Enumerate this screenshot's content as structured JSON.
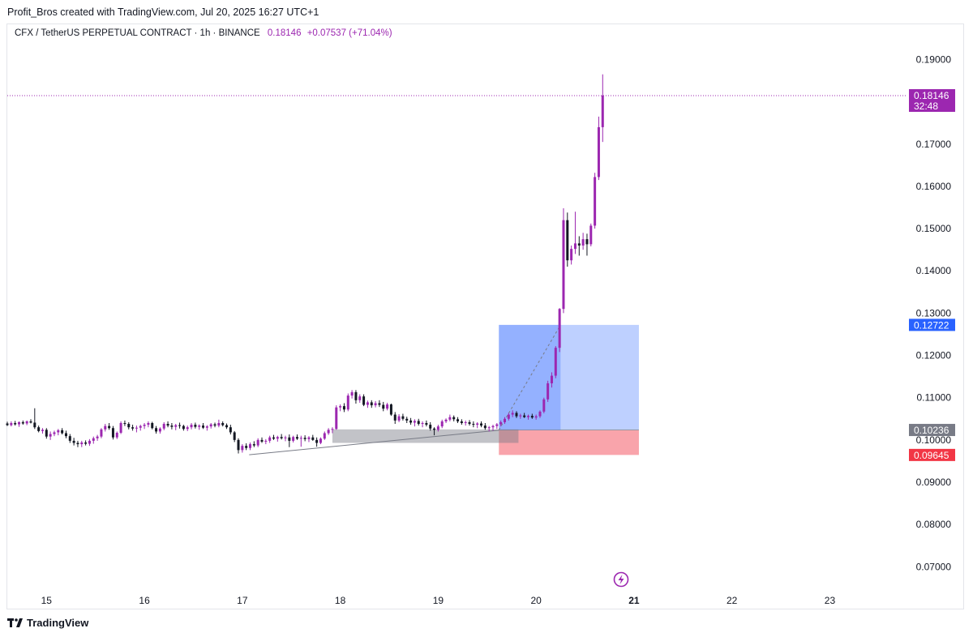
{
  "header": {
    "attribution": "Profit_Bros created with TradingView.com, Jul 20, 2025 16:27 UTC+1"
  },
  "legend": {
    "symbol": "CFX / TetherUS PERPETUAL CONTRACT · 1h · BINANCE",
    "last": "0.18146",
    "change": "+0.07537 (+71.04%)"
  },
  "footer": {
    "brand": "TradingView"
  },
  "colors": {
    "bull": "#9c27b0",
    "bear": "#131722",
    "target": "#2962ff",
    "stop": "#f23645",
    "entry": "#787b86"
  },
  "chart_data": {
    "type": "candlestick",
    "title": "CFX / TetherUS PERPETUAL CONTRACT · 1h · BINANCE",
    "interval": "1h",
    "x_axis": {
      "ticks": [
        "15",
        "16",
        "17",
        "18",
        "19",
        "20",
        "21",
        "22",
        "23"
      ],
      "highlighted": "21",
      "min": 14.6,
      "max": 23.7
    },
    "y_axis": {
      "ticks": [
        "0.19000",
        "0.17000",
        "0.16000",
        "0.15000",
        "0.14000",
        "0.13000",
        "0.12000",
        "0.11000",
        "0.10000",
        "0.09000",
        "0.08000",
        "0.07000"
      ],
      "min": 0.0645,
      "max": 0.1945,
      "side": "right"
    },
    "grid": false,
    "price_labels": [
      {
        "role": "last",
        "value": "0.18146",
        "countdown": "32:48",
        "color": "#9c27b0"
      },
      {
        "role": "target",
        "value": "0.12722",
        "color": "#2962ff"
      },
      {
        "role": "entry",
        "value": "0.10236",
        "color": "#787b86"
      },
      {
        "role": "stop",
        "value": "0.09645",
        "color": "#f23645"
      }
    ],
    "long_position": {
      "x_start": 19.62,
      "x_end": 21.05,
      "entry": 0.10236,
      "target": 0.12722,
      "stop": 0.09645
    },
    "trendline": {
      "from": [
        17.07,
        0.0965
      ],
      "to": [
        19.62,
        0.1023
      ]
    },
    "consolidation_box": {
      "x_start": 17.92,
      "x_end": 19.82,
      "top": 0.1025,
      "bottom": 0.0993
    },
    "candles": [
      [
        14.6,
        0.1039,
        0.1043,
        0.1033,
        0.1035
      ],
      [
        14.64,
        0.1035,
        0.1044,
        0.1032,
        0.104
      ],
      [
        14.68,
        0.104,
        0.1045,
        0.1034,
        0.1037
      ],
      [
        14.72,
        0.1037,
        0.1044,
        0.1031,
        0.1042
      ],
      [
        14.76,
        0.1042,
        0.1046,
        0.1036,
        0.1039
      ],
      [
        14.8,
        0.1039,
        0.1046,
        0.1035,
        0.1044
      ],
      [
        14.84,
        0.1044,
        0.1049,
        0.1039,
        0.1041
      ],
      [
        14.88,
        0.1041,
        0.1075,
        0.1026,
        0.103
      ],
      [
        14.92,
        0.103,
        0.1034,
        0.1018,
        0.1021
      ],
      [
        14.96,
        0.1021,
        0.1028,
        0.1015,
        0.1024
      ],
      [
        15.0,
        0.1024,
        0.1028,
        0.1003,
        0.1008
      ],
      [
        15.04,
        0.1008,
        0.102,
        0.1,
        0.1014
      ],
      [
        15.08,
        0.1014,
        0.1022,
        0.1009,
        0.1018
      ],
      [
        15.12,
        0.1018,
        0.1026,
        0.1011,
        0.1023
      ],
      [
        15.16,
        0.1023,
        0.1028,
        0.1013,
        0.1016
      ],
      [
        15.2,
        0.1016,
        0.1022,
        0.1004,
        0.1009
      ],
      [
        15.24,
        0.1009,
        0.1014,
        0.0993,
        0.0998
      ],
      [
        15.28,
        0.0998,
        0.1005,
        0.0987,
        0.0993
      ],
      [
        15.32,
        0.0993,
        0.0998,
        0.0983,
        0.099
      ],
      [
        15.36,
        0.099,
        0.0998,
        0.0983,
        0.0994
      ],
      [
        15.4,
        0.0994,
        0.0999,
        0.0987,
        0.0991
      ],
      [
        15.44,
        0.0991,
        0.1002,
        0.0986,
        0.0998
      ],
      [
        15.48,
        0.0998,
        0.1008,
        0.0991,
        0.1004
      ],
      [
        15.52,
        0.1004,
        0.1012,
        0.0998,
        0.1008
      ],
      [
        15.56,
        0.1008,
        0.1028,
        0.1004,
        0.1025
      ],
      [
        15.6,
        0.1025,
        0.1038,
        0.102,
        0.1033
      ],
      [
        15.64,
        0.1033,
        0.104,
        0.1024,
        0.1028
      ],
      [
        15.68,
        0.1028,
        0.1033,
        0.1001,
        0.1006
      ],
      [
        15.72,
        0.1006,
        0.102,
        0.1002,
        0.1017
      ],
      [
        15.76,
        0.1017,
        0.1044,
        0.1014,
        0.104
      ],
      [
        15.8,
        0.104,
        0.1046,
        0.1033,
        0.1038
      ],
      [
        15.84,
        0.1038,
        0.1042,
        0.1025,
        0.103
      ],
      [
        15.88,
        0.103,
        0.1036,
        0.1022,
        0.1027
      ],
      [
        15.92,
        0.1027,
        0.1034,
        0.1018,
        0.1029
      ],
      [
        15.96,
        0.1029,
        0.1036,
        0.1022,
        0.1033
      ],
      [
        16.0,
        0.1033,
        0.104,
        0.1026,
        0.1036
      ],
      [
        16.04,
        0.1036,
        0.1044,
        0.103,
        0.104
      ],
      [
        16.08,
        0.104,
        0.1043,
        0.1025,
        0.1028
      ],
      [
        16.12,
        0.1028,
        0.1033,
        0.1015,
        0.102
      ],
      [
        16.16,
        0.102,
        0.103,
        0.1015,
        0.1027
      ],
      [
        16.2,
        0.1027,
        0.1042,
        0.1023,
        0.1038
      ],
      [
        16.24,
        0.1038,
        0.1044,
        0.103,
        0.1034
      ],
      [
        16.28,
        0.1034,
        0.104,
        0.1025,
        0.1031
      ],
      [
        16.32,
        0.1031,
        0.1038,
        0.1023,
        0.1035
      ],
      [
        16.36,
        0.1035,
        0.1041,
        0.1027,
        0.1033
      ],
      [
        16.4,
        0.1033,
        0.1036,
        0.1022,
        0.1026
      ],
      [
        16.44,
        0.1026,
        0.1034,
        0.1021,
        0.103
      ],
      [
        16.48,
        0.103,
        0.104,
        0.1025,
        0.1036
      ],
      [
        16.52,
        0.1036,
        0.1041,
        0.1027,
        0.1031
      ],
      [
        16.56,
        0.1031,
        0.1037,
        0.1024,
        0.1034
      ],
      [
        16.6,
        0.1034,
        0.104,
        0.1026,
        0.1029
      ],
      [
        16.64,
        0.1029,
        0.1035,
        0.1022,
        0.1032
      ],
      [
        16.68,
        0.1032,
        0.104,
        0.1027,
        0.1037
      ],
      [
        16.72,
        0.1037,
        0.1041,
        0.103,
        0.1034
      ],
      [
        16.76,
        0.1034,
        0.1048,
        0.103,
        0.104
      ],
      [
        16.8,
        0.104,
        0.1044,
        0.1032,
        0.1035
      ],
      [
        16.84,
        0.1035,
        0.1039,
        0.1026,
        0.103
      ],
      [
        16.88,
        0.103,
        0.1036,
        0.1013,
        0.1018
      ],
      [
        16.92,
        0.1018,
        0.1021,
        0.0995,
        0.1
      ],
      [
        16.96,
        0.1,
        0.1004,
        0.0968,
        0.0976
      ],
      [
        17.0,
        0.0976,
        0.099,
        0.097,
        0.0986
      ],
      [
        17.04,
        0.0986,
        0.0992,
        0.0976,
        0.0981
      ],
      [
        17.08,
        0.0981,
        0.0994,
        0.0976,
        0.099
      ],
      [
        17.12,
        0.099,
        0.0997,
        0.0983,
        0.0987
      ],
      [
        17.16,
        0.0987,
        0.1004,
        0.0983,
        0.1
      ],
      [
        17.2,
        0.1,
        0.1006,
        0.0993,
        0.0996
      ],
      [
        17.24,
        0.0996,
        0.1002,
        0.099,
        0.0998
      ],
      [
        17.28,
        0.0998,
        0.101,
        0.0993,
        0.1006
      ],
      [
        17.32,
        0.1006,
        0.1012,
        0.1,
        0.1003
      ],
      [
        17.36,
        0.1003,
        0.101,
        0.0996,
        0.1007
      ],
      [
        17.4,
        0.1007,
        0.1014,
        0.1001,
        0.1004
      ],
      [
        17.44,
        0.1004,
        0.101,
        0.0997,
        0.1006
      ],
      [
        17.48,
        0.1006,
        0.1013,
        0.0983,
        0.0998
      ],
      [
        17.52,
        0.0998,
        0.101,
        0.0994,
        0.1007
      ],
      [
        17.56,
        0.1007,
        0.1013,
        0.1,
        0.1003
      ],
      [
        17.6,
        0.1003,
        0.101,
        0.0984,
        0.1005
      ],
      [
        17.64,
        0.1005,
        0.1011,
        0.0997,
        0.1002
      ],
      [
        17.68,
        0.1002,
        0.1009,
        0.0995,
        0.1006
      ],
      [
        17.72,
        0.1006,
        0.1012,
        0.0998,
        0.1
      ],
      [
        17.76,
        0.1,
        0.1006,
        0.0984,
        0.0993
      ],
      [
        17.8,
        0.0993,
        0.1006,
        0.099,
        0.1003
      ],
      [
        17.84,
        0.1003,
        0.102,
        0.1,
        0.1016
      ],
      [
        17.88,
        0.1016,
        0.1028,
        0.1012,
        0.1024
      ],
      [
        17.92,
        0.1024,
        0.103,
        0.1016,
        0.1026
      ],
      [
        17.96,
        0.1026,
        0.1082,
        0.1024,
        0.1077
      ],
      [
        18.0,
        0.1077,
        0.1084,
        0.1068,
        0.108
      ],
      [
        18.04,
        0.108,
        0.1087,
        0.1066,
        0.1072
      ],
      [
        18.08,
        0.1072,
        0.111,
        0.1068,
        0.1105
      ],
      [
        18.12,
        0.1105,
        0.1118,
        0.1098,
        0.1113
      ],
      [
        18.16,
        0.1113,
        0.1118,
        0.1086,
        0.1094
      ],
      [
        18.2,
        0.1094,
        0.1108,
        0.1088,
        0.1103
      ],
      [
        18.24,
        0.1103,
        0.1108,
        0.108,
        0.1083
      ],
      [
        18.28,
        0.1083,
        0.1093,
        0.1076,
        0.1089
      ],
      [
        18.32,
        0.1089,
        0.1094,
        0.1076,
        0.1082
      ],
      [
        18.36,
        0.1082,
        0.1092,
        0.1077,
        0.1087
      ],
      [
        18.4,
        0.1087,
        0.1094,
        0.1078,
        0.1083
      ],
      [
        18.44,
        0.1083,
        0.109,
        0.1068,
        0.1074
      ],
      [
        18.48,
        0.1074,
        0.1088,
        0.107,
        0.1084
      ],
      [
        18.52,
        0.1084,
        0.1086,
        0.1057,
        0.106
      ],
      [
        18.56,
        0.106,
        0.1066,
        0.1038,
        0.1046
      ],
      [
        18.6,
        0.1046,
        0.1061,
        0.1042,
        0.1056
      ],
      [
        18.64,
        0.1056,
        0.1062,
        0.1046,
        0.105
      ],
      [
        18.68,
        0.105,
        0.1055,
        0.104,
        0.1046
      ],
      [
        18.72,
        0.1046,
        0.1052,
        0.1036,
        0.1041
      ],
      [
        18.76,
        0.1041,
        0.1049,
        0.1032,
        0.1045
      ],
      [
        18.8,
        0.1045,
        0.105,
        0.1034,
        0.1038
      ],
      [
        18.84,
        0.1038,
        0.1044,
        0.103,
        0.104
      ],
      [
        18.88,
        0.104,
        0.1046,
        0.1032,
        0.1036
      ],
      [
        18.92,
        0.1036,
        0.1042,
        0.1022,
        0.1027
      ],
      [
        18.96,
        0.1027,
        0.103,
        0.1011,
        0.1024
      ],
      [
        19.0,
        0.1024,
        0.1036,
        0.102,
        0.1032
      ],
      [
        19.04,
        0.1032,
        0.1048,
        0.1028,
        0.1044
      ],
      [
        19.08,
        0.1044,
        0.1051,
        0.104,
        0.1048
      ],
      [
        19.12,
        0.1048,
        0.106,
        0.1044,
        0.1054
      ],
      [
        19.16,
        0.1054,
        0.1058,
        0.1044,
        0.1049
      ],
      [
        19.2,
        0.1049,
        0.1054,
        0.104,
        0.1044
      ],
      [
        19.24,
        0.1044,
        0.1049,
        0.1036,
        0.104
      ],
      [
        19.28,
        0.104,
        0.1046,
        0.1034,
        0.1042
      ],
      [
        19.32,
        0.1042,
        0.1047,
        0.1034,
        0.1038
      ],
      [
        19.36,
        0.1038,
        0.1044,
        0.103,
        0.1036
      ],
      [
        19.4,
        0.1036,
        0.1042,
        0.1028,
        0.1039
      ],
      [
        19.44,
        0.1039,
        0.1044,
        0.103,
        0.1034
      ],
      [
        19.48,
        0.1034,
        0.104,
        0.1024,
        0.1028
      ],
      [
        19.52,
        0.1028,
        0.1033,
        0.102,
        0.103
      ],
      [
        19.56,
        0.103,
        0.1036,
        0.1022,
        0.1033
      ],
      [
        19.6,
        0.1033,
        0.104,
        0.1026,
        0.1037
      ],
      [
        19.64,
        0.1037,
        0.1046,
        0.1032,
        0.1042
      ],
      [
        19.68,
        0.1042,
        0.1054,
        0.1038,
        0.105
      ],
      [
        19.72,
        0.105,
        0.1064,
        0.1046,
        0.106
      ],
      [
        19.76,
        0.106,
        0.107,
        0.1054,
        0.1064
      ],
      [
        19.8,
        0.1064,
        0.1068,
        0.1052,
        0.1056
      ],
      [
        19.84,
        0.1056,
        0.1062,
        0.105,
        0.1058
      ],
      [
        19.88,
        0.1058,
        0.1064,
        0.1052,
        0.1054
      ],
      [
        19.92,
        0.1054,
        0.106,
        0.1048,
        0.1057
      ],
      [
        19.96,
        0.1057,
        0.1062,
        0.105,
        0.1053
      ],
      [
        20.0,
        0.1053,
        0.106,
        0.1048,
        0.1056
      ],
      [
        20.04,
        0.1056,
        0.107,
        0.1052,
        0.1067
      ],
      [
        20.08,
        0.1067,
        0.11,
        0.1063,
        0.1096
      ],
      [
        20.12,
        0.1096,
        0.114,
        0.109,
        0.1134
      ],
      [
        20.16,
        0.1134,
        0.116,
        0.1124,
        0.1152
      ],
      [
        20.2,
        0.1152,
        0.1222,
        0.1146,
        0.1218
      ],
      [
        20.24,
        0.1218,
        0.1312,
        0.1208,
        0.131
      ],
      [
        20.28,
        0.131,
        0.1548,
        0.13,
        0.152
      ],
      [
        20.32,
        0.152,
        0.1538,
        0.141,
        0.1425
      ],
      [
        20.36,
        0.1425,
        0.146,
        0.1415,
        0.1452
      ],
      [
        20.4,
        0.1452,
        0.154,
        0.144,
        0.1465
      ],
      [
        20.44,
        0.1465,
        0.1482,
        0.1436,
        0.146
      ],
      [
        20.48,
        0.146,
        0.149,
        0.145,
        0.1475
      ],
      [
        20.52,
        0.1475,
        0.1488,
        0.1436,
        0.1463
      ],
      [
        20.56,
        0.1463,
        0.1512,
        0.1458,
        0.1507
      ],
      [
        20.6,
        0.1507,
        0.1632,
        0.15,
        0.1622
      ],
      [
        20.64,
        0.1622,
        0.1765,
        0.1615,
        0.174
      ],
      [
        20.68,
        0.174,
        0.1865,
        0.1705,
        0.1815
      ]
    ]
  }
}
